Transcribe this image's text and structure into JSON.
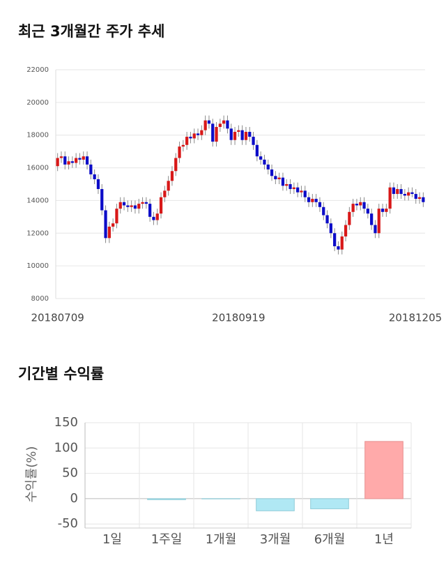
{
  "chart_data": [
    {
      "type": "candlestick",
      "title": "최근 3개월간 주가 추세",
      "categories": [
        "20180709",
        null,
        null,
        null,
        null,
        null,
        null,
        null,
        null,
        null,
        null,
        null,
        null,
        null,
        null,
        null,
        null,
        null,
        null,
        null,
        null,
        null,
        null,
        null,
        null,
        null,
        null,
        null,
        null,
        null,
        null,
        null,
        null,
        null,
        null,
        null,
        null,
        null,
        null,
        null,
        null,
        null,
        null,
        null,
        null,
        null,
        null,
        null,
        null,
        "20180919",
        null,
        null,
        null,
        null,
        null,
        null,
        null,
        null,
        null,
        null,
        null,
        null,
        null,
        null,
        null,
        null,
        null,
        null,
        null,
        null,
        null,
        null,
        null,
        null,
        null,
        null,
        null,
        null,
        null,
        null,
        null,
        null,
        null,
        null,
        null,
        null,
        null,
        null,
        null,
        null,
        null,
        null,
        null,
        null,
        null,
        null,
        null,
        null,
        null,
        "20181205"
      ],
      "open": [
        16100,
        16600,
        16700,
        16200,
        16400,
        16300,
        16600,
        16500,
        16700,
        16200,
        15600,
        15300,
        14700,
        13400,
        11700,
        12400,
        12600,
        13500,
        13900,
        13700,
        13600,
        13700,
        13500,
        13800,
        13900,
        13800,
        13000,
        12800,
        13200,
        14200,
        14600,
        15200,
        15800,
        16600,
        17300,
        17400,
        17900,
        17800,
        18100,
        18000,
        18300,
        18900,
        18700,
        17600,
        18500,
        18700,
        18900,
        18400,
        17700,
        18200,
        18300,
        17700,
        18200,
        17900,
        17400,
        16700,
        16500,
        16200,
        15900,
        15500,
        15300,
        15400,
        14900,
        15000,
        14700,
        14800,
        14500,
        14600,
        14200,
        13900,
        14100,
        13900,
        13600,
        13100,
        12600,
        12000,
        11200,
        11000,
        11800,
        12500,
        13300,
        13800,
        13700,
        13900,
        13500,
        13200,
        12500,
        12000,
        13500,
        13300,
        13500,
        14800,
        14400,
        14700,
        14400,
        14300,
        14500,
        14400,
        14100,
        14200
      ],
      "close": [
        16600,
        16700,
        16200,
        16400,
        16300,
        16600,
        16500,
        16700,
        16200,
        15600,
        15300,
        14700,
        13400,
        11700,
        12400,
        12600,
        13500,
        13900,
        13700,
        13600,
        13700,
        13500,
        13800,
        13900,
        13800,
        13000,
        12800,
        13200,
        14200,
        14600,
        15200,
        15800,
        16600,
        17300,
        17400,
        17900,
        17800,
        18100,
        18000,
        18300,
        18900,
        18700,
        17600,
        18500,
        18700,
        18900,
        18400,
        17700,
        18200,
        18300,
        17700,
        18200,
        17900,
        17400,
        16700,
        16500,
        16200,
        15900,
        15500,
        15300,
        15400,
        14900,
        15000,
        14700,
        14800,
        14500,
        14600,
        14200,
        13900,
        14100,
        13900,
        13600,
        13100,
        12600,
        12000,
        11200,
        11000,
        11800,
        12500,
        13300,
        13800,
        13700,
        13900,
        13500,
        13200,
        12500,
        12000,
        13500,
        13300,
        13500,
        14800,
        14400,
        14700,
        14400,
        14300,
        14500,
        14400,
        14100,
        14200,
        13900
      ],
      "high": [
        16900,
        17000,
        17000,
        16700,
        16700,
        16900,
        16900,
        17000,
        17000,
        16500,
        15900,
        15600,
        15000,
        13700,
        12700,
        12900,
        13800,
        14200,
        14200,
        14000,
        14000,
        14000,
        14100,
        14200,
        14200,
        14100,
        13300,
        13500,
        14500,
        14900,
        15500,
        16100,
        16900,
        17600,
        17700,
        18200,
        18200,
        18400,
        18400,
        18600,
        19200,
        19200,
        19000,
        18800,
        19000,
        19200,
        19200,
        18700,
        18500,
        18600,
        18600,
        18500,
        18500,
        18200,
        17700,
        17000,
        16800,
        16500,
        16200,
        15800,
        15700,
        15700,
        15300,
        15300,
        15100,
        15100,
        14900,
        14900,
        14500,
        14400,
        14400,
        14200,
        13900,
        13400,
        12900,
        12300,
        11500,
        12100,
        12800,
        13600,
        14100,
        14100,
        14200,
        14200,
        13800,
        13500,
        12800,
        13800,
        13800,
        13800,
        15100,
        15100,
        15000,
        15000,
        14700,
        14800,
        14800,
        14700,
        14500,
        14500
      ],
      "low": [
        15800,
        16300,
        15900,
        15900,
        16000,
        16000,
        16200,
        16200,
        15900,
        15300,
        15000,
        14400,
        13100,
        11400,
        11400,
        12100,
        12300,
        13200,
        13400,
        13300,
        13300,
        13200,
        13200,
        13500,
        13500,
        12700,
        12500,
        12500,
        12900,
        13900,
        14300,
        14900,
        15500,
        16300,
        17000,
        17100,
        17500,
        17500,
        17700,
        17700,
        18000,
        18400,
        17300,
        17300,
        18200,
        18400,
        18100,
        17400,
        17400,
        17900,
        17400,
        17400,
        17600,
        17100,
        16400,
        16200,
        15900,
        15600,
        15200,
        15000,
        15000,
        14600,
        14600,
        14400,
        14400,
        14200,
        14200,
        13900,
        13600,
        13600,
        13600,
        13300,
        12800,
        12300,
        11700,
        10900,
        10700,
        10700,
        11500,
        12200,
        13000,
        13400,
        13400,
        13200,
        12900,
        12200,
        11700,
        11700,
        13000,
        13000,
        13200,
        14100,
        14100,
        14100,
        14000,
        14000,
        14200,
        13800,
        13800,
        13600
      ],
      "up_color": "#d81818",
      "down_color": "#0c0cc8",
      "ylim": [
        8000,
        22000
      ],
      "yticks": [
        8000,
        10000,
        12000,
        14000,
        16000,
        18000,
        20000,
        22000
      ],
      "grid": true
    },
    {
      "type": "bar",
      "title": "기간별 수익률",
      "y_label": "수익률(%)",
      "categories": [
        "1일",
        "1주일",
        "1개월",
        "3개월",
        "6개월",
        "1년"
      ],
      "values": [
        0,
        -2,
        -0.5,
        -24,
        -20,
        113
      ],
      "positive_color": "#ffaaaa",
      "negative_color": "#b0e8f4",
      "ylim": [
        -58,
        150
      ],
      "yticks": [
        -50,
        0,
        50,
        100,
        150
      ],
      "grid": true
    }
  ]
}
